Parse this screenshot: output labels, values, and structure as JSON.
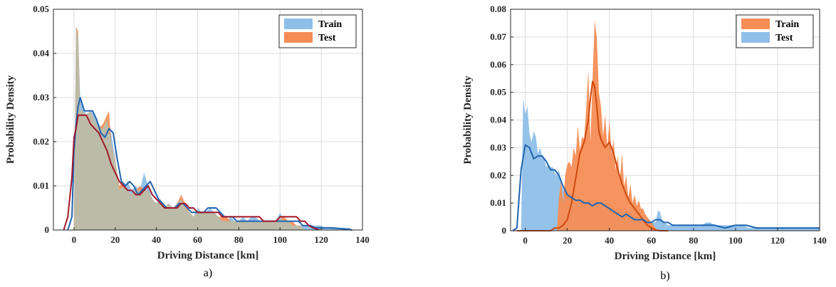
{
  "chart_data": [
    {
      "type": "area",
      "panel_label": "a)",
      "xlabel": "Driving Distance [km]",
      "ylabel": "Probability Density",
      "xlim": [
        -10,
        140
      ],
      "ylim": [
        0,
        0.05
      ],
      "xticks": [
        "0",
        "20",
        "40",
        "60",
        "80",
        "100",
        "120",
        "140"
      ],
      "yticks": [
        "0",
        "0.01",
        "0.02",
        "0.03",
        "0.04",
        "0.05"
      ],
      "grid": true,
      "legend": {
        "placement": "top-right",
        "entries": [
          "Train",
          "Test"
        ]
      },
      "colors": {
        "train_fill": "#8fbfe8",
        "test_fill": "#f58d55",
        "overlap_fill": "#bcbba7",
        "train_kde": "#1f64b0",
        "test_kde": "#a0182a"
      },
      "series": [
        {
          "name": "Train",
          "kind": "histogram",
          "x": [
            0,
            1,
            2,
            3,
            4,
            6,
            8,
            10,
            12,
            14,
            16,
            18,
            20,
            22,
            24,
            26,
            28,
            30,
            32,
            34,
            36,
            38,
            40,
            42,
            44,
            46,
            48,
            50,
            52,
            54,
            56,
            58,
            60,
            62,
            64,
            66,
            68,
            70,
            72,
            74,
            76,
            78,
            80,
            82,
            84,
            86,
            88,
            90,
            92,
            94,
            96,
            98,
            100,
            102,
            104,
            106,
            108,
            110,
            112,
            114,
            116,
            118,
            120,
            122,
            124,
            126,
            128,
            130,
            132,
            134,
            135
          ],
          "values": [
            0.001,
            0.046,
            0.044,
            0.03,
            0.028,
            0.026,
            0.027,
            0.026,
            0.024,
            0.023,
            0.025,
            0.022,
            0.016,
            0.009,
            0.01,
            0.011,
            0.009,
            0.01,
            0.009,
            0.013,
            0.01,
            0.007,
            0.006,
            0.007,
            0.005,
            0.006,
            0.005,
            0.006,
            0.007,
            0.005,
            0.004,
            0.003,
            0.005,
            0.004,
            0.004,
            0.005,
            0.004,
            0.003,
            0.002,
            0.002,
            0.003,
            0.002,
            0.002,
            0.003,
            0.002,
            0.003,
            0.003,
            0.002,
            0.002,
            0.002,
            0.002,
            0.002,
            0.004,
            0.002,
            0.002,
            0.001,
            0.001,
            0.001,
            0.001,
            0.001,
            0.001,
            0.001,
            0.001,
            0.0005,
            0.0005,
            0.0005,
            0.0005,
            0.0005,
            0.0005,
            0.0005,
            0
          ]
        },
        {
          "name": "Test",
          "kind": "histogram",
          "x": [
            0,
            1,
            2,
            3,
            4,
            6,
            8,
            10,
            12,
            14,
            16,
            17,
            18,
            20,
            22,
            24,
            26,
            28,
            30,
            32,
            34,
            36,
            38,
            40,
            42,
            44,
            46,
            48,
            50,
            52,
            54,
            56,
            58,
            60,
            62,
            64,
            66,
            68,
            70,
            72,
            74,
            76,
            78,
            80,
            82,
            84,
            86,
            88,
            90,
            92,
            94,
            96,
            98,
            100,
            102,
            104,
            106,
            108,
            110,
            111
          ],
          "values": [
            0.001,
            0.046,
            0.045,
            0.027,
            0.027,
            0.026,
            0.027,
            0.025,
            0.023,
            0.024,
            0.026,
            0.027,
            0.02,
            0.016,
            0.01,
            0.011,
            0.009,
            0.008,
            0.009,
            0.01,
            0.009,
            0.009,
            0.007,
            0.006,
            0.006,
            0.005,
            0.006,
            0.005,
            0.006,
            0.008,
            0.006,
            0.004,
            0.003,
            0.004,
            0.004,
            0.004,
            0.004,
            0.004,
            0.003,
            0.003,
            0.003,
            0.002,
            0.002,
            0.002,
            0.002,
            0.002,
            0.002,
            0.002,
            0.002,
            0.002,
            0.002,
            0.002,
            0.002,
            0.003,
            0.003,
            0.002,
            0.002,
            0.001,
            0.001,
            0
          ]
        },
        {
          "name": "Train",
          "kind": "kde",
          "x": [
            -3,
            -1,
            0,
            1,
            2,
            3,
            5,
            7,
            9,
            11,
            13,
            15,
            17,
            19,
            21,
            23,
            25,
            27,
            29,
            31,
            33,
            35,
            37,
            39,
            41,
            43,
            45,
            47,
            49,
            51,
            53,
            55,
            57,
            59,
            61,
            63,
            65,
            67,
            69,
            71,
            73,
            75,
            77,
            79,
            81,
            83,
            85,
            87,
            89,
            91,
            93,
            95,
            97,
            99,
            101,
            103,
            105,
            107,
            109,
            111,
            113,
            115,
            117,
            119,
            121,
            125,
            130,
            135
          ],
          "values": [
            0,
            0.003,
            0.018,
            0.024,
            0.028,
            0.03,
            0.027,
            0.027,
            0.027,
            0.025,
            0.022,
            0.021,
            0.023,
            0.022,
            0.016,
            0.011,
            0.01,
            0.011,
            0.01,
            0.008,
            0.009,
            0.01,
            0.011,
            0.009,
            0.007,
            0.006,
            0.005,
            0.005,
            0.005,
            0.006,
            0.006,
            0.005,
            0.004,
            0.004,
            0.004,
            0.004,
            0.005,
            0.005,
            0.005,
            0.004,
            0.003,
            0.003,
            0.003,
            0.002,
            0.002,
            0.002,
            0.002,
            0.002,
            0.002,
            0.002,
            0.002,
            0.002,
            0.002,
            0.002,
            0.002,
            0.002,
            0.002,
            0.002,
            0.002,
            0.001,
            0.001,
            0.001,
            0.0005,
            0.0005,
            0.0005,
            0.0005,
            0.0003,
            0
          ]
        },
        {
          "name": "Test",
          "kind": "kde",
          "x": [
            -5,
            -3,
            -1,
            0,
            1,
            2,
            4,
            6,
            8,
            10,
            12,
            14,
            16,
            18,
            20,
            22,
            24,
            26,
            28,
            30,
            32,
            34,
            36,
            38,
            40,
            42,
            44,
            46,
            48,
            50,
            52,
            54,
            56,
            58,
            60,
            62,
            64,
            66,
            68,
            70,
            72,
            74,
            76,
            78,
            80,
            82,
            84,
            86,
            88,
            90,
            92,
            94,
            96,
            98,
            100,
            102,
            104,
            106,
            108,
            110,
            112,
            114,
            116,
            118,
            119
          ],
          "values": [
            0,
            0.003,
            0.012,
            0.021,
            0.023,
            0.026,
            0.026,
            0.026,
            0.024,
            0.023,
            0.022,
            0.02,
            0.018,
            0.015,
            0.013,
            0.011,
            0.01,
            0.009,
            0.009,
            0.008,
            0.008,
            0.009,
            0.01,
            0.008,
            0.007,
            0.006,
            0.005,
            0.005,
            0.005,
            0.005,
            0.006,
            0.006,
            0.005,
            0.005,
            0.004,
            0.004,
            0.004,
            0.004,
            0.004,
            0.004,
            0.003,
            0.003,
            0.003,
            0.003,
            0.003,
            0.003,
            0.003,
            0.003,
            0.003,
            0.003,
            0.002,
            0.002,
            0.002,
            0.002,
            0.003,
            0.003,
            0.003,
            0.003,
            0.003,
            0.002,
            0.002,
            0.001,
            0.0005,
            0.0002,
            0
          ]
        }
      ]
    },
    {
      "type": "area",
      "panel_label": "b)",
      "xlabel": "Driving Distance [km]",
      "ylabel": "Probability Density",
      "xlim": [
        -7,
        140
      ],
      "ylim": [
        0,
        0.08
      ],
      "xticks": [
        "0",
        "20",
        "40",
        "60",
        "80",
        "100",
        "120",
        "140"
      ],
      "yticks": [
        "0",
        "0.01",
        "0.02",
        "0.03",
        "0.04",
        "0.05",
        "0.06",
        "0.07",
        "0.08"
      ],
      "grid": true,
      "legend": {
        "placement": "top-right",
        "entries": [
          "Train",
          "Test"
        ]
      },
      "colors": {
        "train_fill": "#f58d55",
        "test_fill": "#8fbfe8",
        "train_kde": "#cf4a10",
        "test_kde": "#1f64b0"
      },
      "series": [
        {
          "name": "Train",
          "kind": "histogram",
          "x": [
            15,
            16,
            17,
            18,
            19,
            20,
            21,
            22,
            23,
            24,
            25,
            26,
            27,
            28,
            29,
            30,
            31,
            32,
            33,
            34,
            35,
            36,
            37,
            38,
            39,
            40,
            41,
            42,
            43,
            44,
            45,
            46,
            47,
            48,
            49,
            50,
            51,
            52,
            53,
            54,
            55,
            56,
            57,
            58,
            59,
            60,
            61,
            62,
            63
          ],
          "values": [
            0,
            0.012,
            0.018,
            0.01,
            0.02,
            0.024,
            0.025,
            0.023,
            0.03,
            0.027,
            0.038,
            0.029,
            0.034,
            0.033,
            0.045,
            0.058,
            0.032,
            0.055,
            0.076,
            0.07,
            0.05,
            0.045,
            0.034,
            0.042,
            0.03,
            0.04,
            0.028,
            0.033,
            0.022,
            0.027,
            0.018,
            0.028,
            0.016,
            0.02,
            0.012,
            0.017,
            0.01,
            0.013,
            0.009,
            0.011,
            0.008,
            0.008,
            0.006,
            0.005,
            0.004,
            0.003,
            0.002,
            0.001,
            0
          ]
        },
        {
          "name": "Test",
          "kind": "histogram",
          "x": [
            -2,
            -1,
            0,
            1,
            2,
            3,
            4,
            5,
            6,
            7,
            8,
            9,
            10,
            11,
            12,
            13,
            14,
            15,
            16,
            17,
            18,
            19,
            20,
            22,
            24,
            26,
            28,
            30,
            32,
            34,
            36,
            38,
            40,
            42,
            44,
            46,
            48,
            50,
            52,
            54,
            56,
            58,
            60,
            62,
            63,
            64,
            65,
            66,
            68,
            70,
            72,
            74,
            76,
            78,
            80,
            82,
            84,
            86,
            88,
            90,
            92,
            94,
            96,
            98,
            100,
            102,
            104,
            106,
            108,
            110,
            115,
            120,
            125,
            130,
            135,
            140
          ],
          "values": [
            0,
            0.048,
            0.042,
            0.045,
            0.035,
            0.032,
            0.036,
            0.034,
            0.028,
            0.03,
            0.027,
            0.026,
            0.023,
            0.024,
            0.023,
            0.023,
            0.021,
            0.02,
            0.022,
            0.017,
            0.015,
            0.014,
            0.013,
            0.012,
            0.011,
            0.01,
            0.01,
            0.01,
            0.009,
            0.01,
            0.009,
            0.008,
            0.009,
            0.008,
            0.007,
            0.007,
            0.006,
            0.006,
            0.005,
            0.005,
            0.004,
            0.003,
            0.003,
            0.003,
            0.007,
            0.007,
            0.004,
            0.003,
            0.002,
            0.002,
            0.002,
            0.002,
            0.002,
            0.002,
            0.002,
            0.002,
            0.002,
            0.003,
            0.003,
            0.002,
            0.002,
            0.002,
            0.002,
            0.002,
            0.002,
            0.002,
            0.002,
            0.001,
            0.001,
            0.001,
            0.001,
            0.001,
            0.001,
            0.001,
            0.001,
            0.001
          ]
        },
        {
          "name": "Train",
          "kind": "kde",
          "x": [
            -4,
            -2,
            0,
            2,
            4,
            6,
            8,
            10,
            12,
            14,
            16,
            18,
            20,
            22,
            24,
            26,
            28,
            30,
            31,
            32,
            33,
            34,
            35,
            36,
            38,
            40,
            42,
            44,
            46,
            48,
            50,
            52,
            54,
            56,
            58,
            60,
            62,
            64,
            66,
            68
          ],
          "values": [
            0,
            0,
            0,
            0,
            0,
            0,
            0,
            0,
            0,
            0.001,
            0.001,
            0.002,
            0.004,
            0.01,
            0.019,
            0.028,
            0.032,
            0.04,
            0.048,
            0.054,
            0.052,
            0.045,
            0.036,
            0.033,
            0.03,
            0.032,
            0.028,
            0.022,
            0.017,
            0.013,
            0.01,
            0.008,
            0.006,
            0.004,
            0.002,
            0.001,
            0.0003,
            0,
            0,
            0
          ]
        },
        {
          "name": "Test",
          "kind": "kde",
          "x": [
            -6,
            -4,
            -2,
            0,
            2,
            4,
            6,
            8,
            10,
            12,
            14,
            16,
            18,
            20,
            22,
            24,
            26,
            28,
            30,
            32,
            34,
            36,
            38,
            40,
            42,
            44,
            46,
            48,
            50,
            52,
            54,
            56,
            58,
            60,
            62,
            64,
            66,
            68,
            70,
            75,
            80,
            85,
            90,
            95,
            100,
            105,
            110,
            115,
            120,
            125,
            130,
            135,
            140
          ],
          "values": [
            0,
            0.001,
            0.022,
            0.031,
            0.03,
            0.026,
            0.027,
            0.027,
            0.025,
            0.022,
            0.022,
            0.02,
            0.016,
            0.013,
            0.012,
            0.011,
            0.011,
            0.01,
            0.01,
            0.009,
            0.01,
            0.01,
            0.009,
            0.008,
            0.007,
            0.006,
            0.005,
            0.006,
            0.005,
            0.004,
            0.004,
            0.004,
            0.003,
            0.003,
            0.004,
            0.004,
            0.003,
            0.003,
            0.002,
            0.002,
            0.002,
            0.002,
            0.002,
            0.001,
            0.002,
            0.002,
            0.001,
            0.001,
            0.001,
            0.001,
            0.001,
            0.001,
            0.001
          ]
        }
      ]
    }
  ]
}
